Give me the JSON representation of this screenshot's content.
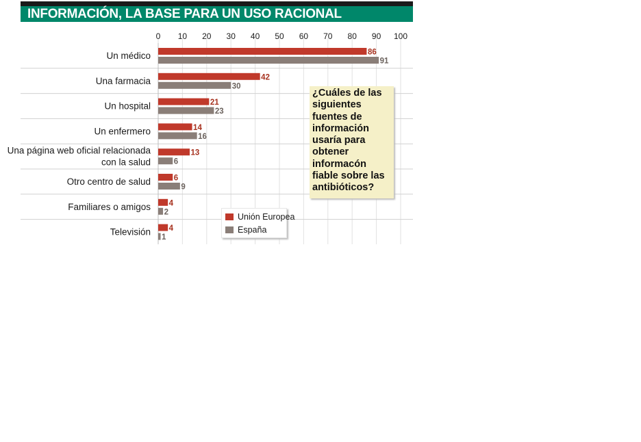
{
  "header": {
    "title": "INFORMACIÓN, LA BASE PARA UN USO RACIONAL"
  },
  "question": "¿Cuáles de las siguientes fuentes de información usaría para obtener informacón fiable sobre las antibióticos?",
  "colors": {
    "header_bg": "#00876a",
    "eu": "#c0392b",
    "es": "#8a7e78",
    "question_bg": "#f5f0c8"
  },
  "chart_data": {
    "type": "bar",
    "orientation": "horizontal",
    "title": "",
    "xlabel": "",
    "ylabel": "",
    "xlim": [
      0,
      100
    ],
    "ticks": [
      0,
      10,
      20,
      30,
      40,
      50,
      60,
      70,
      80,
      90,
      100
    ],
    "grid": true,
    "legend_position": "bottom-center",
    "categories": [
      [
        "Un médico"
      ],
      [
        "Una farmacia"
      ],
      [
        "Un hospital"
      ],
      [
        "Un enfermero"
      ],
      [
        "Una página web oficial relacionada",
        "con la salud"
      ],
      [
        "Otro centro de salud"
      ],
      [
        "Familiares o amigos"
      ],
      [
        "Televisión"
      ]
    ],
    "series": [
      {
        "name": "Unión Europea",
        "color": "#c0392b",
        "values": [
          86,
          42,
          21,
          14,
          13,
          6,
          4,
          4
        ]
      },
      {
        "name": "España",
        "color": "#8a7e78",
        "values": [
          91,
          30,
          23,
          16,
          6,
          9,
          2,
          1
        ]
      }
    ]
  }
}
